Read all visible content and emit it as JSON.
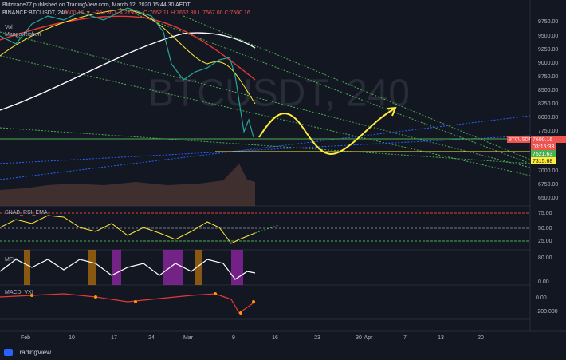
{
  "header": {
    "publisher": "Blitztrade77 published on TradingView.com, March 12, 2020 15:44:30 AEDT",
    "symbol": "BINANCE:BTCUSDT, 240",
    "change": "7600.16 ▼ −334.36 (−4.21%)",
    "ohlc": "O:7662.11 H:7662.80 L:7567.00 C:7600.16"
  },
  "legend": {
    "volume": "Vol",
    "ribbon": "Mango Ribbon"
  },
  "watermark": "BTCUSDT, 240",
  "price_axis": [
    "9750.00",
    "9500.00",
    "9250.00",
    "9000.00",
    "8750.00",
    "8500.00",
    "8250.00",
    "8000.00",
    "7750.00",
    "7000.00",
    "6750.00",
    "6500.00"
  ],
  "price_tags": {
    "symbol": "BTCUSDT",
    "last": "7600.16",
    "countdown": "03:15:33",
    "green": "7521.63",
    "yellow": "7315.68"
  },
  "rsi_panel": {
    "title": "SNAB_RSI_EMA",
    "axis": [
      "75.00",
      "50.00",
      "25.00"
    ]
  },
  "mfi_panel": {
    "title": "MFI+",
    "axis": [
      "80.00",
      "0.00"
    ]
  },
  "macd_panel": {
    "title": "MACD_VXI",
    "axis": [
      "0.00",
      "-200.000"
    ]
  },
  "time_axis": [
    "Feb",
    "10",
    "17",
    "24",
    "Mar",
    "9",
    "16",
    "23",
    "30",
    "Apr",
    "7",
    "13",
    "20"
  ],
  "footer": "TradingView"
}
